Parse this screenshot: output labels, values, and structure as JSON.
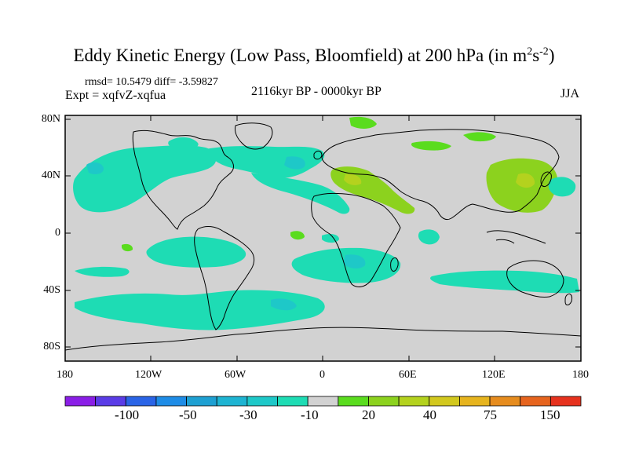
{
  "title": {
    "main": "Eddy Kinetic Energy (Low Pass, Bloomfield) at 200 hPa (in m",
    "sup1": "2",
    "mid": "s",
    "sup2": "-2",
    "close": ")"
  },
  "stats": "rmsd= 10.5479 diff= -3.59827",
  "expt": "Expt = xqfvZ-xqfua",
  "period": "2116kyr BP - 0000kyr BP",
  "season": "JJA",
  "lat_labels": [
    "80N",
    "40N",
    "0",
    "40S",
    "80S"
  ],
  "lon_labels": [
    "180",
    "120W",
    "60W",
    "0",
    "60E",
    "120E",
    "180"
  ],
  "colorbar": {
    "colors": [
      "#8a1ee6",
      "#5a3ce6",
      "#2a64e6",
      "#1e8ce6",
      "#1ea0d2",
      "#1eb4d2",
      "#1ec8c8",
      "#1edcb4",
      "#d2d2d2",
      "#5adc1e",
      "#8cd21e",
      "#b4d21e",
      "#d2c81e",
      "#e6b41e",
      "#e68c1e",
      "#e6641e",
      "#e6321e"
    ],
    "labels": [
      "-100",
      "-50",
      "-30",
      "-10",
      "20",
      "40",
      "75",
      "150"
    ]
  },
  "map": {
    "ocean_color": "#d2d2d2",
    "frame_color": "#000000",
    "legend_neg": "#1edcb4",
    "legend_neg2": "#1ec8c8",
    "legend_pos": "#8cd21e",
    "legend_pos2": "#5adc1e",
    "legend_pos3": "#b4d21e"
  }
}
